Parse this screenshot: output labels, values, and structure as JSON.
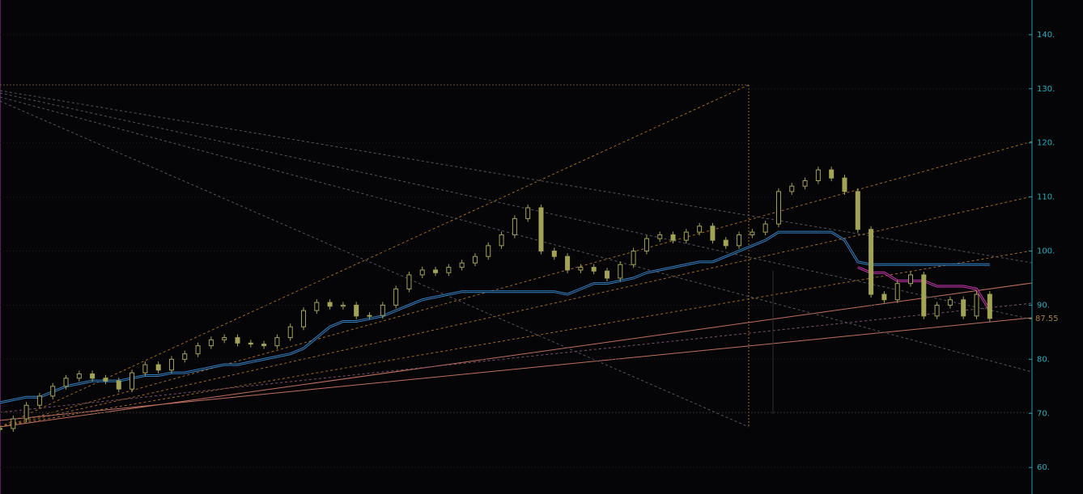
{
  "chart_data": {
    "type": "candle",
    "xlim": [
      0,
      78.2
    ],
    "ylim": [
      55.1,
      146.4
    ],
    "yticks": [
      {
        "value": 60,
        "label": "60."
      },
      {
        "value": 70,
        "label": "70."
      },
      {
        "value": 80,
        "label": "80."
      },
      {
        "value": 90,
        "label": "90."
      },
      {
        "value": 100,
        "label": "100."
      },
      {
        "value": 110,
        "label": "110."
      },
      {
        "value": 120,
        "label": "120."
      },
      {
        "value": 130,
        "label": "130."
      },
      {
        "value": 140,
        "label": "140."
      }
    ],
    "price": {
      "color": "#a3a356",
      "values": [
        67.2,
        69,
        71.5,
        73.2,
        75,
        76.5,
        77.3,
        76.5,
        76,
        74.5,
        77.5,
        79,
        78,
        80,
        81,
        82.5,
        83.6,
        84,
        83,
        82.8,
        82.5,
        84,
        86,
        89,
        90.5,
        89.8,
        90,
        88,
        88.1,
        90,
        93,
        95.6,
        96.5,
        96,
        97,
        97.8,
        99,
        101,
        103,
        106,
        108,
        100,
        99,
        96.5,
        97,
        96.3,
        95,
        97.5,
        100,
        102.3,
        103,
        102,
        103.5,
        104.6,
        102,
        101,
        103,
        103.5,
        105,
        111,
        112,
        113,
        115,
        113.5,
        111,
        104,
        92,
        91,
        94,
        95.6,
        88,
        90,
        91,
        88,
        92,
        87.55
      ]
    },
    "stop_line": {
      "color": "#3a8fd8",
      "values": [
        72,
        72.5,
        73,
        73,
        74,
        75,
        75.5,
        76,
        76,
        76,
        76.5,
        77,
        77,
        77.5,
        77.5,
        78,
        78.5,
        79,
        79,
        79.5,
        80,
        80.5,
        81,
        82,
        84,
        86,
        87,
        87,
        87.5,
        88,
        89,
        90,
        91,
        91.5,
        92,
        92.5,
        92.5,
        92.5,
        92.5,
        92.5,
        92.5,
        92.5,
        92.5,
        92,
        93,
        94,
        94,
        94.5,
        95,
        96,
        96.5,
        97,
        97.5,
        98,
        98,
        99,
        100,
        101,
        102,
        103.5,
        103.5,
        103.5,
        103.5,
        103.5,
        102,
        98,
        97.5,
        97.5,
        97.5,
        97.5,
        97.5,
        97.5,
        97.5,
        97.5,
        97.5,
        97.5
      ]
    },
    "stop_line_2": {
      "color": "#e03cc0",
      "values": [
        null,
        null,
        null,
        null,
        null,
        null,
        null,
        null,
        null,
        null,
        null,
        null,
        null,
        null,
        null,
        null,
        null,
        null,
        null,
        null,
        null,
        null,
        null,
        null,
        null,
        null,
        null,
        null,
        null,
        null,
        null,
        null,
        null,
        null,
        null,
        null,
        null,
        null,
        null,
        null,
        null,
        null,
        null,
        null,
        null,
        null,
        null,
        null,
        null,
        null,
        null,
        null,
        null,
        null,
        null,
        null,
        null,
        null,
        null,
        null,
        null,
        null,
        null,
        null,
        null,
        97,
        96,
        96,
        94.5,
        94.5,
        94.5,
        93.5,
        93.5,
        93.5,
        93,
        89
      ]
    },
    "last_price": {
      "value": 87.55,
      "label": "87.55"
    }
  }
}
